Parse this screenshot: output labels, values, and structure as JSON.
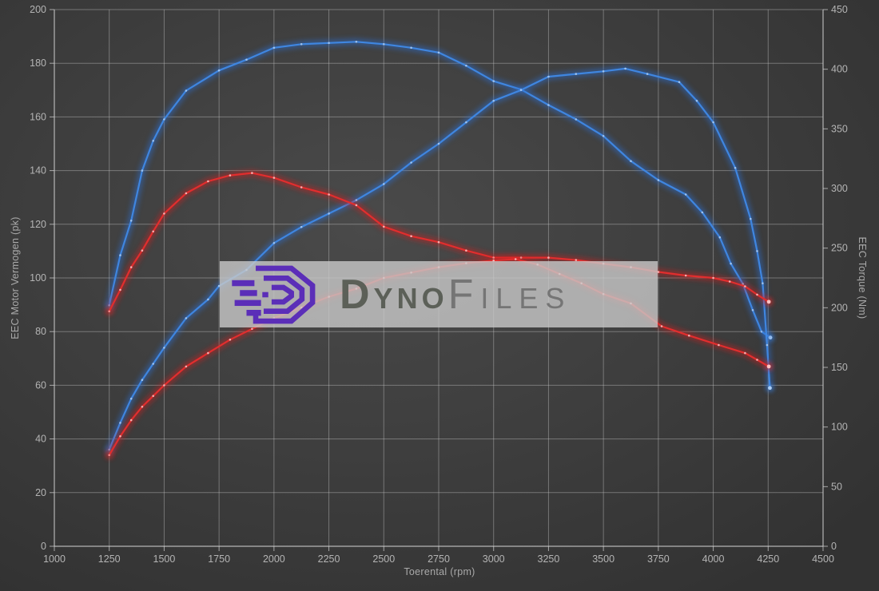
{
  "watermark": {
    "brand_bold": "Dyno",
    "brand_light": "Files",
    "logo_icon": "dynofiles-hexagon-logo",
    "logo_color": "#5b2eb8",
    "box_color": "rgba(201,201,201,0.80)"
  },
  "chart_data": {
    "type": "line",
    "title": "",
    "xlabel": "Toerental (rpm)",
    "ylabel_left": "EEC Motor Vermogen (pk)",
    "ylabel_right": "EEC Torque (Nm)",
    "x_range": [
      1000,
      4500
    ],
    "x_ticks": [
      1000,
      1250,
      1500,
      1750,
      2000,
      2250,
      2500,
      2750,
      3000,
      3250,
      3500,
      3750,
      4000,
      4250,
      4500
    ],
    "y_left_range": [
      0,
      200
    ],
    "y_left_ticks": [
      0,
      20,
      40,
      60,
      80,
      100,
      120,
      140,
      160,
      180,
      200
    ],
    "y_right_range": [
      0,
      450
    ],
    "y_right_ticks": [
      0,
      50,
      100,
      150,
      200,
      250,
      300,
      350,
      400,
      450
    ],
    "grid": true,
    "legend": "none",
    "grid_color": "rgba(200,200,200,0.42)",
    "tick_color": "#b4b4b4",
    "series": [
      {
        "name": "blue-torque-nm",
        "axis": "right",
        "unit": "Nm",
        "color": "#3f86e0",
        "glow_color": "#2b6fd6",
        "marker_color": "#aacdf5",
        "points": [
          [
            1250,
            202
          ],
          [
            1300,
            244
          ],
          [
            1350,
            273
          ],
          [
            1400,
            315
          ],
          [
            1450,
            340
          ],
          [
            1500,
            358
          ],
          [
            1600,
            382
          ],
          [
            1750,
            399
          ],
          [
            1875,
            408
          ],
          [
            2000,
            418
          ],
          [
            2125,
            421
          ],
          [
            2250,
            422
          ],
          [
            2375,
            423
          ],
          [
            2500,
            421
          ],
          [
            2625,
            418
          ],
          [
            2750,
            414
          ],
          [
            2875,
            403
          ],
          [
            3000,
            390
          ],
          [
            3125,
            383
          ],
          [
            3250,
            370
          ],
          [
            3375,
            358
          ],
          [
            3500,
            344
          ],
          [
            3625,
            323
          ],
          [
            3750,
            307
          ],
          [
            3875,
            295
          ],
          [
            3950,
            280
          ],
          [
            4030,
            259
          ],
          [
            4080,
            237
          ],
          [
            4135,
            220
          ],
          [
            4180,
            198
          ],
          [
            4220,
            180
          ],
          [
            4260,
            175
          ]
        ]
      },
      {
        "name": "blue-power-pk",
        "axis": "left",
        "unit": "pk",
        "color": "#3f86e0",
        "glow_color": "#2b6fd6",
        "marker_color": "#aacdf5",
        "points": [
          [
            1250,
            36
          ],
          [
            1300,
            46
          ],
          [
            1350,
            55
          ],
          [
            1400,
            62
          ],
          [
            1450,
            68
          ],
          [
            1500,
            74
          ],
          [
            1600,
            85
          ],
          [
            1700,
            92
          ],
          [
            1750,
            97
          ],
          [
            1875,
            103
          ],
          [
            2000,
            113
          ],
          [
            2125,
            119
          ],
          [
            2250,
            124
          ],
          [
            2375,
            129
          ],
          [
            2500,
            135
          ],
          [
            2625,
            143
          ],
          [
            2750,
            150
          ],
          [
            2875,
            158
          ],
          [
            3000,
            166
          ],
          [
            3125,
            170
          ],
          [
            3250,
            175
          ],
          [
            3375,
            176
          ],
          [
            3500,
            177
          ],
          [
            3600,
            178
          ],
          [
            3700,
            176
          ],
          [
            3845,
            173
          ],
          [
            3925,
            166
          ],
          [
            4000,
            158
          ],
          [
            4100,
            141
          ],
          [
            4170,
            122
          ],
          [
            4200,
            110
          ],
          [
            4225,
            98
          ],
          [
            4245,
            75
          ],
          [
            4258,
            59
          ]
        ]
      },
      {
        "name": "red-torque-nm",
        "axis": "right",
        "unit": "Nm",
        "color": "#e12e2e",
        "glow_color": "#d11f1f",
        "marker_color": "#ffc2c2",
        "points": [
          [
            1250,
            197
          ],
          [
            1300,
            215
          ],
          [
            1350,
            234
          ],
          [
            1400,
            248
          ],
          [
            1450,
            264
          ],
          [
            1500,
            279
          ],
          [
            1600,
            296
          ],
          [
            1700,
            306
          ],
          [
            1800,
            311
          ],
          [
            1900,
            313
          ],
          [
            2000,
            309
          ],
          [
            2125,
            301
          ],
          [
            2250,
            295
          ],
          [
            2375,
            286
          ],
          [
            2500,
            268
          ],
          [
            2625,
            260
          ],
          [
            2750,
            255
          ],
          [
            2875,
            248
          ],
          [
            3000,
            242
          ],
          [
            3125,
            242
          ],
          [
            3250,
            242
          ],
          [
            3375,
            240
          ],
          [
            3500,
            237
          ],
          [
            3625,
            234
          ],
          [
            3750,
            230
          ],
          [
            3875,
            227
          ],
          [
            4000,
            225
          ],
          [
            4075,
            222
          ],
          [
            4145,
            218
          ],
          [
            4200,
            211
          ],
          [
            4253,
            205
          ]
        ]
      },
      {
        "name": "red-power-pk",
        "axis": "left",
        "unit": "pk",
        "color": "#e12e2e",
        "glow_color": "#d11f1f",
        "marker_color": "#ffc2c2",
        "points": [
          [
            1250,
            34
          ],
          [
            1300,
            41
          ],
          [
            1350,
            47
          ],
          [
            1400,
            52
          ],
          [
            1450,
            56
          ],
          [
            1500,
            60
          ],
          [
            1600,
            67
          ],
          [
            1700,
            72
          ],
          [
            1800,
            77
          ],
          [
            1900,
            81
          ],
          [
            2000,
            85
          ],
          [
            2125,
            89
          ],
          [
            2250,
            93
          ],
          [
            2375,
            96
          ],
          [
            2500,
            100
          ],
          [
            2625,
            102
          ],
          [
            2750,
            104
          ],
          [
            2875,
            105.5
          ],
          [
            3000,
            106.5
          ],
          [
            3100,
            107
          ],
          [
            3200,
            105
          ],
          [
            3300,
            101.5
          ],
          [
            3400,
            98
          ],
          [
            3500,
            94
          ],
          [
            3625,
            90.5
          ],
          [
            3765,
            82
          ],
          [
            3890,
            78.5
          ],
          [
            4025,
            75
          ],
          [
            4145,
            72
          ],
          [
            4200,
            69.5
          ],
          [
            4253,
            67
          ]
        ]
      }
    ]
  }
}
